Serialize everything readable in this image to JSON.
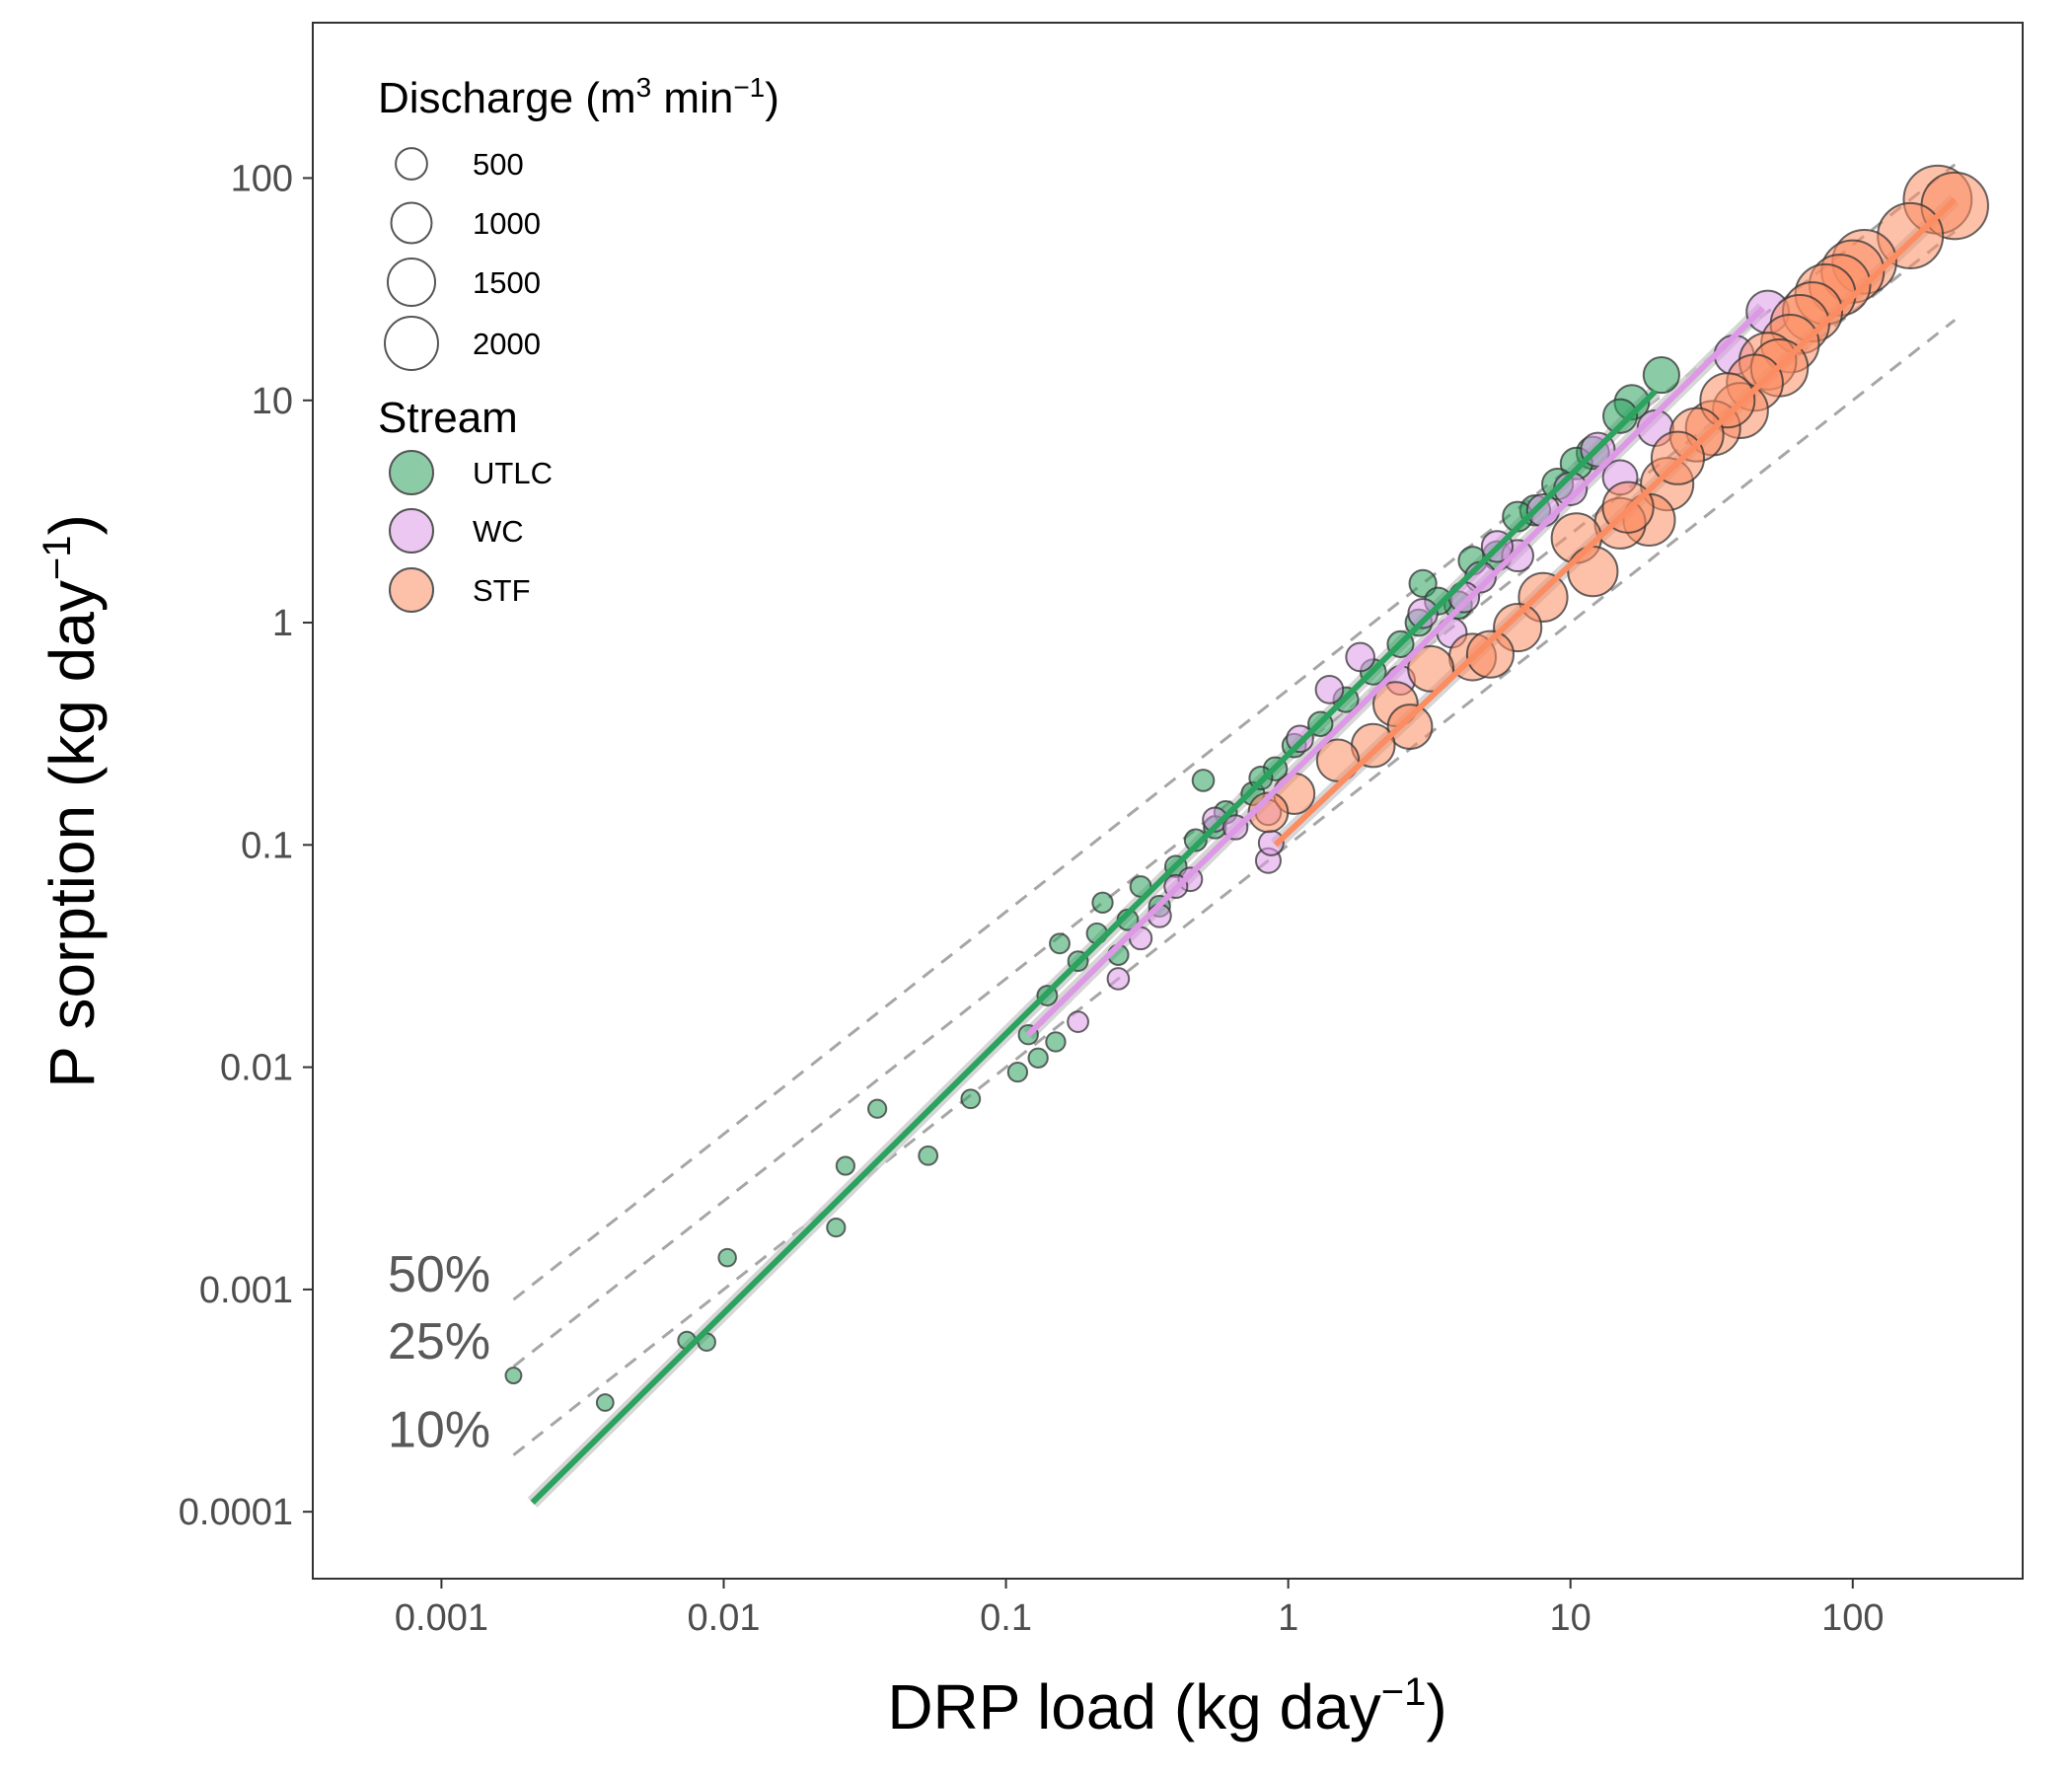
{
  "chart_data": {
    "type": "scatter",
    "title": "",
    "xlabel": {
      "main": "DRP load (kg day",
      "sup": "−1",
      "close": ")"
    },
    "ylabel": {
      "main": "P sorption (kg day",
      "sup": "−1",
      "close": ")"
    },
    "xscale": "log",
    "yscale": "log",
    "xlim": [
      0.00035,
      400
    ],
    "ylim": [
      5e-05,
      500
    ],
    "xticks": [
      0.001,
      0.01,
      0.1,
      1,
      10,
      100
    ],
    "xtick_labels": [
      "0.001",
      "0.01",
      "0.1",
      "1",
      "10",
      "100"
    ],
    "yticks": [
      0.0001,
      0.001,
      0.01,
      0.1,
      1,
      10,
      100
    ],
    "ytick_labels": [
      "0.0001",
      "0.001",
      "0.01",
      "0.1",
      "1",
      "10",
      "100"
    ],
    "grid": false,
    "legend": {
      "placement": "top-left",
      "size_title": {
        "main": "Discharge (m",
        "sup1": "3",
        "mid": " min",
        "sup2": "−1",
        "close": ")"
      },
      "size_entries": [
        {
          "label": "500",
          "value": 500
        },
        {
          "label": "1000",
          "value": 1000
        },
        {
          "label": "1500",
          "value": 1500
        },
        {
          "label": "2000",
          "value": 2000
        }
      ],
      "stream_title": "Stream",
      "stream_entries": [
        {
          "label": "UTLC",
          "color": "#2ca25f"
        },
        {
          "label": "WC",
          "color": "#dd99e6"
        },
        {
          "label": "STF",
          "color": "#fc8d62"
        }
      ]
    },
    "reference_lines": [
      {
        "label": "50%",
        "fraction": 0.5,
        "x_range": [
          0.0018,
          230
        ]
      },
      {
        "label": "25%",
        "fraction": 0.25,
        "x_range": [
          0.0018,
          230
        ]
      },
      {
        "label": "10%",
        "fraction": 0.1,
        "x_range": [
          0.0018,
          230
        ]
      }
    ],
    "fit_lines": [
      {
        "series": "UTLC",
        "color": "#2ca25f",
        "x": [
          0.0021,
          20
        ],
        "y": [
          0.00011,
          11
        ]
      },
      {
        "series": "WC",
        "color": "#dd99e6",
        "x": [
          0.12,
          48
        ],
        "y": [
          0.014,
          26
        ]
      },
      {
        "series": "STF",
        "color": "#fc8d62",
        "x": [
          0.9,
          230
        ],
        "y": [
          0.1,
          80
        ]
      }
    ],
    "series": [
      {
        "name": "UTLC",
        "color": "#2ca25f",
        "points": [
          [
            0.0018,
            0.00041,
            10
          ],
          [
            0.0038,
            0.00031,
            15
          ],
          [
            0.0074,
            0.00059,
            20
          ],
          [
            0.0087,
            0.00058,
            20
          ],
          [
            0.0103,
            0.00139,
            20
          ],
          [
            0.025,
            0.0019,
            25
          ],
          [
            0.027,
            0.0036,
            25
          ],
          [
            0.035,
            0.0065,
            25
          ],
          [
            0.053,
            0.004,
            30
          ],
          [
            0.075,
            0.0072,
            30
          ],
          [
            0.11,
            0.0095,
            35
          ],
          [
            0.12,
            0.014,
            35
          ],
          [
            0.13,
            0.011,
            35
          ],
          [
            0.14,
            0.021,
            40
          ],
          [
            0.15,
            0.013,
            35
          ],
          [
            0.155,
            0.036,
            40
          ],
          [
            0.18,
            0.03,
            40
          ],
          [
            0.21,
            0.04,
            45
          ],
          [
            0.22,
            0.055,
            45
          ],
          [
            0.25,
            0.032,
            45
          ],
          [
            0.27,
            0.046,
            50
          ],
          [
            0.3,
            0.065,
            50
          ],
          [
            0.35,
            0.053,
            55
          ],
          [
            0.4,
            0.08,
            60
          ],
          [
            0.47,
            0.105,
            65
          ],
          [
            0.5,
            0.195,
            60
          ],
          [
            0.55,
            0.12,
            70
          ],
          [
            0.6,
            0.14,
            75
          ],
          [
            0.75,
            0.17,
            80
          ],
          [
            0.8,
            0.2,
            80
          ],
          [
            0.9,
            0.22,
            85
          ],
          [
            1.05,
            0.28,
            90
          ],
          [
            1.3,
            0.35,
            100
          ],
          [
            1.6,
            0.45,
            110
          ],
          [
            2.0,
            0.6,
            120
          ],
          [
            2.5,
            0.8,
            130
          ],
          [
            2.9,
            1.0,
            140
          ],
          [
            3.0,
            1.5,
            150
          ],
          [
            3.4,
            1.25,
            150
          ],
          [
            4.0,
            1.2,
            160
          ],
          [
            4.5,
            1.9,
            170
          ],
          [
            5.5,
            2.0,
            190
          ],
          [
            6.5,
            3.0,
            210
          ],
          [
            7.5,
            3.2,
            220
          ],
          [
            9.0,
            4.2,
            240
          ],
          [
            10.5,
            5.2,
            260
          ],
          [
            12.0,
            5.8,
            280
          ],
          [
            15.0,
            8.5,
            320
          ],
          [
            16.5,
            9.8,
            340
          ],
          [
            21.0,
            13.0,
            380
          ]
        ]
      },
      {
        "name": "WC",
        "color": "#dd99e6",
        "points": [
          [
            0.18,
            0.016,
            50
          ],
          [
            0.25,
            0.025,
            60
          ],
          [
            0.3,
            0.038,
            70
          ],
          [
            0.35,
            0.048,
            80
          ],
          [
            0.4,
            0.065,
            80
          ],
          [
            0.45,
            0.07,
            90
          ],
          [
            0.55,
            0.13,
            100
          ],
          [
            0.65,
            0.12,
            100
          ],
          [
            0.85,
            0.085,
            110
          ],
          [
            0.87,
            0.102,
            110
          ],
          [
            0.85,
            0.14,
            120
          ],
          [
            1.1,
            0.3,
            140
          ],
          [
            1.4,
            0.5,
            160
          ],
          [
            1.8,
            0.7,
            180
          ],
          [
            2.5,
            0.55,
            190
          ],
          [
            3.0,
            1.1,
            200
          ],
          [
            3.8,
            0.9,
            210
          ],
          [
            4.2,
            1.3,
            220
          ],
          [
            4.8,
            1.6,
            230
          ],
          [
            5.5,
            2.2,
            240
          ],
          [
            6.5,
            2.0,
            250
          ],
          [
            8.0,
            3.2,
            270
          ],
          [
            10.0,
            4.0,
            290
          ],
          [
            12.5,
            6.0,
            320
          ],
          [
            15.0,
            4.5,
            340
          ],
          [
            20.0,
            7.5,
            380
          ],
          [
            38.0,
            16.0,
            500
          ],
          [
            50.0,
            25.0,
            620
          ]
        ]
      },
      {
        "name": "STF",
        "color": "#fc8d62",
        "points": [
          [
            0.85,
            0.14,
            500
          ],
          [
            1.05,
            0.17,
            550
          ],
          [
            1.5,
            0.24,
            600
          ],
          [
            2.0,
            0.28,
            650
          ],
          [
            2.4,
            0.43,
            700
          ],
          [
            2.7,
            0.34,
            700
          ],
          [
            3.2,
            0.62,
            750
          ],
          [
            4.5,
            0.7,
            800
          ],
          [
            5.2,
            0.72,
            800
          ],
          [
            6.5,
            0.95,
            850
          ],
          [
            8.0,
            1.3,
            900
          ],
          [
            10.5,
            2.4,
            950
          ],
          [
            12.0,
            1.7,
            950
          ],
          [
            15.0,
            2.8,
            1000
          ],
          [
            16.0,
            3.3,
            1000
          ],
          [
            19.0,
            2.9,
            1050
          ],
          [
            22.0,
            4.2,
            1100
          ],
          [
            24.0,
            5.5,
            1100
          ],
          [
            28.0,
            7.0,
            1150
          ],
          [
            32.0,
            7.5,
            1200
          ],
          [
            36.0,
            10.0,
            1200
          ],
          [
            40.0,
            9.0,
            1250
          ],
          [
            45.0,
            12.0,
            1300
          ],
          [
            50.0,
            15.0,
            1350
          ],
          [
            55.0,
            14.0,
            1350
          ],
          [
            60.0,
            18.0,
            1400
          ],
          [
            65.0,
            22.0,
            1450
          ],
          [
            72.0,
            25.0,
            1500
          ],
          [
            80.0,
            30.0,
            1550
          ],
          [
            90.0,
            33.0,
            1600
          ],
          [
            100.0,
            38.0,
            1700
          ],
          [
            110.0,
            42.0,
            1800
          ],
          [
            160.0,
            55.0,
            1900
          ],
          [
            200.0,
            80.0,
            2100
          ],
          [
            230.0,
            75.0,
            2000
          ]
        ]
      }
    ]
  }
}
